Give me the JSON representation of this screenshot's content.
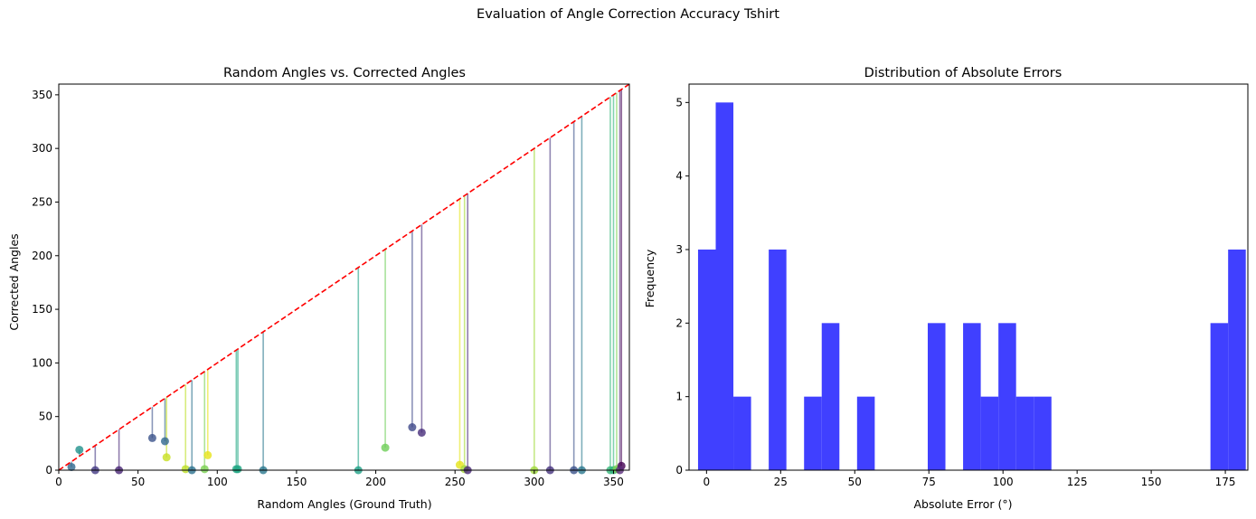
{
  "suptitle": "Evaluation of Angle Correction Accuracy Tshirt",
  "chart_data": [
    {
      "type": "scatter",
      "title": "Random Angles vs. Corrected Angles",
      "xlabel": "Random Angles (Ground Truth)",
      "ylabel": "Corrected Angles",
      "xlim": [
        0,
        360
      ],
      "ylim": [
        0,
        360
      ],
      "xticks": [
        0,
        50,
        100,
        150,
        200,
        250,
        300,
        350
      ],
      "yticks": [
        0,
        50,
        100,
        150,
        200,
        250,
        300,
        350
      ],
      "reference_line": {
        "from": [
          0,
          0
        ],
        "to": [
          360,
          360
        ],
        "color": "#ff0000",
        "style": "dashed"
      },
      "points": [
        {
          "x": 8,
          "y": 3,
          "color": "#31688e"
        },
        {
          "x": 13,
          "y": 19,
          "color": "#21918c"
        },
        {
          "x": 23,
          "y": 0,
          "color": "#443983"
        },
        {
          "x": 38,
          "y": 0,
          "color": "#482576"
        },
        {
          "x": 59,
          "y": 30,
          "color": "#3b528b"
        },
        {
          "x": 67,
          "y": 27,
          "color": "#31688e"
        },
        {
          "x": 68,
          "y": 12,
          "color": "#c8e020"
        },
        {
          "x": 80,
          "y": 1,
          "color": "#bddf26"
        },
        {
          "x": 84,
          "y": 0,
          "color": "#2c728e"
        },
        {
          "x": 92,
          "y": 1,
          "color": "#7ad151"
        },
        {
          "x": 94,
          "y": 14,
          "color": "#e7e419"
        },
        {
          "x": 112,
          "y": 1,
          "color": "#22a884"
        },
        {
          "x": 113,
          "y": 1,
          "color": "#22a884"
        },
        {
          "x": 129,
          "y": 0,
          "color": "#2a788e"
        },
        {
          "x": 189,
          "y": 0,
          "color": "#1fa187"
        },
        {
          "x": 206,
          "y": 21,
          "color": "#6ece58"
        },
        {
          "x": 223,
          "y": 40,
          "color": "#3e4989"
        },
        {
          "x": 229,
          "y": 35,
          "color": "#472d7b"
        },
        {
          "x": 253,
          "y": 5,
          "color": "#e5e419"
        },
        {
          "x": 256,
          "y": 1,
          "color": "#a5db36"
        },
        {
          "x": 258,
          "y": 0,
          "color": "#482878"
        },
        {
          "x": 300,
          "y": 0,
          "color": "#a0da39"
        },
        {
          "x": 310,
          "y": 0,
          "color": "#46337e"
        },
        {
          "x": 325,
          "y": 0,
          "color": "#3b528b"
        },
        {
          "x": 330,
          "y": 0,
          "color": "#2a788e"
        },
        {
          "x": 348,
          "y": 0,
          "color": "#35b779"
        },
        {
          "x": 350,
          "y": 0,
          "color": "#2eb37c"
        },
        {
          "x": 352,
          "y": 1,
          "color": "#7ad151"
        },
        {
          "x": 355,
          "y": 4,
          "color": "#440154"
        },
        {
          "x": 354,
          "y": 0,
          "color": "#5a2c7a"
        }
      ]
    },
    {
      "type": "bar",
      "title": "Distribution of Absolute Errors",
      "xlabel": "Absolute Error (°)",
      "ylabel": "Frequency",
      "xlim": [
        -5.9,
        182.6
      ],
      "ylim": [
        0,
        5.25
      ],
      "xticks": [
        0,
        25,
        50,
        75,
        100,
        125,
        150,
        175
      ],
      "yticks": [
        0,
        1,
        2,
        3,
        4,
        5
      ],
      "bar_color": "#4040ff",
      "bin_start": -2.86,
      "bin_width": 5.96,
      "counts": [
        3,
        5,
        1,
        0,
        3,
        0,
        1,
        2,
        0,
        1,
        0,
        0,
        0,
        2,
        0,
        2,
        1,
        2,
        1,
        1,
        0,
        0,
        0,
        0,
        0,
        0,
        0,
        0,
        0,
        2,
        3
      ]
    }
  ]
}
